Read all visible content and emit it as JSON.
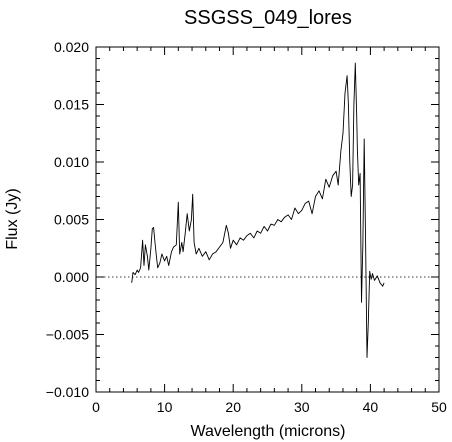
{
  "chart_data": {
    "type": "line",
    "title": "SSGSS_049_lores",
    "xlabel": "Wavelength (microns)",
    "ylabel": "Flux (Jy)",
    "xlim": [
      0,
      50
    ],
    "ylim": [
      -0.01,
      0.02
    ],
    "grid": false,
    "legend": "none",
    "x_ticks": [
      0,
      10,
      20,
      30,
      40,
      50
    ],
    "x_tick_labels": [
      "0",
      "10",
      "20",
      "30",
      "40",
      "50"
    ],
    "y_ticks": [
      -0.01,
      -0.005,
      0.0,
      0.005,
      0.01,
      0.015,
      0.02
    ],
    "y_tick_labels": [
      "−0.010",
      "−0.005",
      "0.000",
      "0.005",
      "0.010",
      "0.015",
      "0.020"
    ],
    "reference_line": {
      "y": 0.0,
      "style": "dotted"
    },
    "colors": {
      "line": "#000000",
      "axes": "#000000",
      "background": "#ffffff"
    },
    "series": [
      {
        "x": [
          5.2,
          5.4,
          5.7,
          6.0,
          6.2,
          6.5,
          6.8,
          7.0,
          7.2,
          7.5,
          7.7,
          8.0,
          8.2,
          8.4,
          8.6,
          8.8,
          9.0,
          9.3,
          9.6,
          10.0,
          10.3,
          10.6,
          11.0,
          11.3,
          11.7,
          12.0,
          12.2,
          12.5,
          12.7,
          13.0,
          13.3,
          13.6,
          13.9,
          14.1,
          14.3,
          14.6,
          15.0,
          15.5,
          16.0,
          16.5,
          17.0,
          17.5,
          18.0,
          18.5,
          19.0,
          19.3,
          19.6,
          20.0,
          20.5,
          21.0,
          21.5,
          22.0,
          22.5,
          23.0,
          23.5,
          24.0,
          24.5,
          25.0,
          25.5,
          26.0,
          26.5,
          27.0,
          27.5,
          28.0,
          28.5,
          29.0,
          29.5,
          30.0,
          30.5,
          31.0,
          31.5,
          32.0,
          32.5,
          33.0,
          33.5,
          34.0,
          34.5,
          35.0,
          35.3,
          35.7,
          36.0,
          36.3,
          36.6,
          36.8,
          37.0,
          37.2,
          37.4,
          37.6,
          37.8,
          38.0,
          38.1,
          38.3,
          38.5,
          38.7,
          38.9,
          39.1,
          39.3,
          39.5,
          39.7,
          39.9,
          40.1,
          40.3,
          40.6,
          41.0,
          41.4,
          41.8,
          42.0
        ],
        "values": [
          -0.0005,
          0.0004,
          0.0002,
          0.0006,
          0.0004,
          0.0008,
          0.0032,
          0.001,
          0.0028,
          0.0018,
          0.0006,
          0.0025,
          0.0042,
          0.0043,
          0.003,
          0.0018,
          0.0008,
          0.0012,
          0.002,
          0.0014,
          0.0018,
          0.001,
          0.0022,
          0.0026,
          0.0028,
          0.0065,
          0.002,
          0.003,
          0.0022,
          0.0038,
          0.0055,
          0.004,
          0.005,
          0.0072,
          0.003,
          0.002,
          0.0025,
          0.0018,
          0.0022,
          0.0015,
          0.002,
          0.0022,
          0.0026,
          0.003,
          0.0045,
          0.0038,
          0.0025,
          0.0032,
          0.0028,
          0.0034,
          0.0032,
          0.0036,
          0.0038,
          0.0034,
          0.004,
          0.0038,
          0.0044,
          0.004,
          0.0046,
          0.0045,
          0.005,
          0.0048,
          0.0052,
          0.0054,
          0.005,
          0.006,
          0.0055,
          0.0058,
          0.0064,
          0.0066,
          0.0055,
          0.007,
          0.0075,
          0.0068,
          0.0085,
          0.0078,
          0.0088,
          0.0092,
          0.008,
          0.011,
          0.0125,
          0.016,
          0.0175,
          0.015,
          0.01,
          0.007,
          0.008,
          0.015,
          0.0186,
          0.014,
          0.011,
          0.008,
          0.009,
          -0.0022,
          0.003,
          0.012,
          0.003,
          -0.007,
          -0.004,
          0.0005,
          -0.0002,
          0.0003,
          -0.0003,
          0.0001,
          -0.0005,
          -0.0008,
          -0.0005
        ]
      }
    ]
  }
}
